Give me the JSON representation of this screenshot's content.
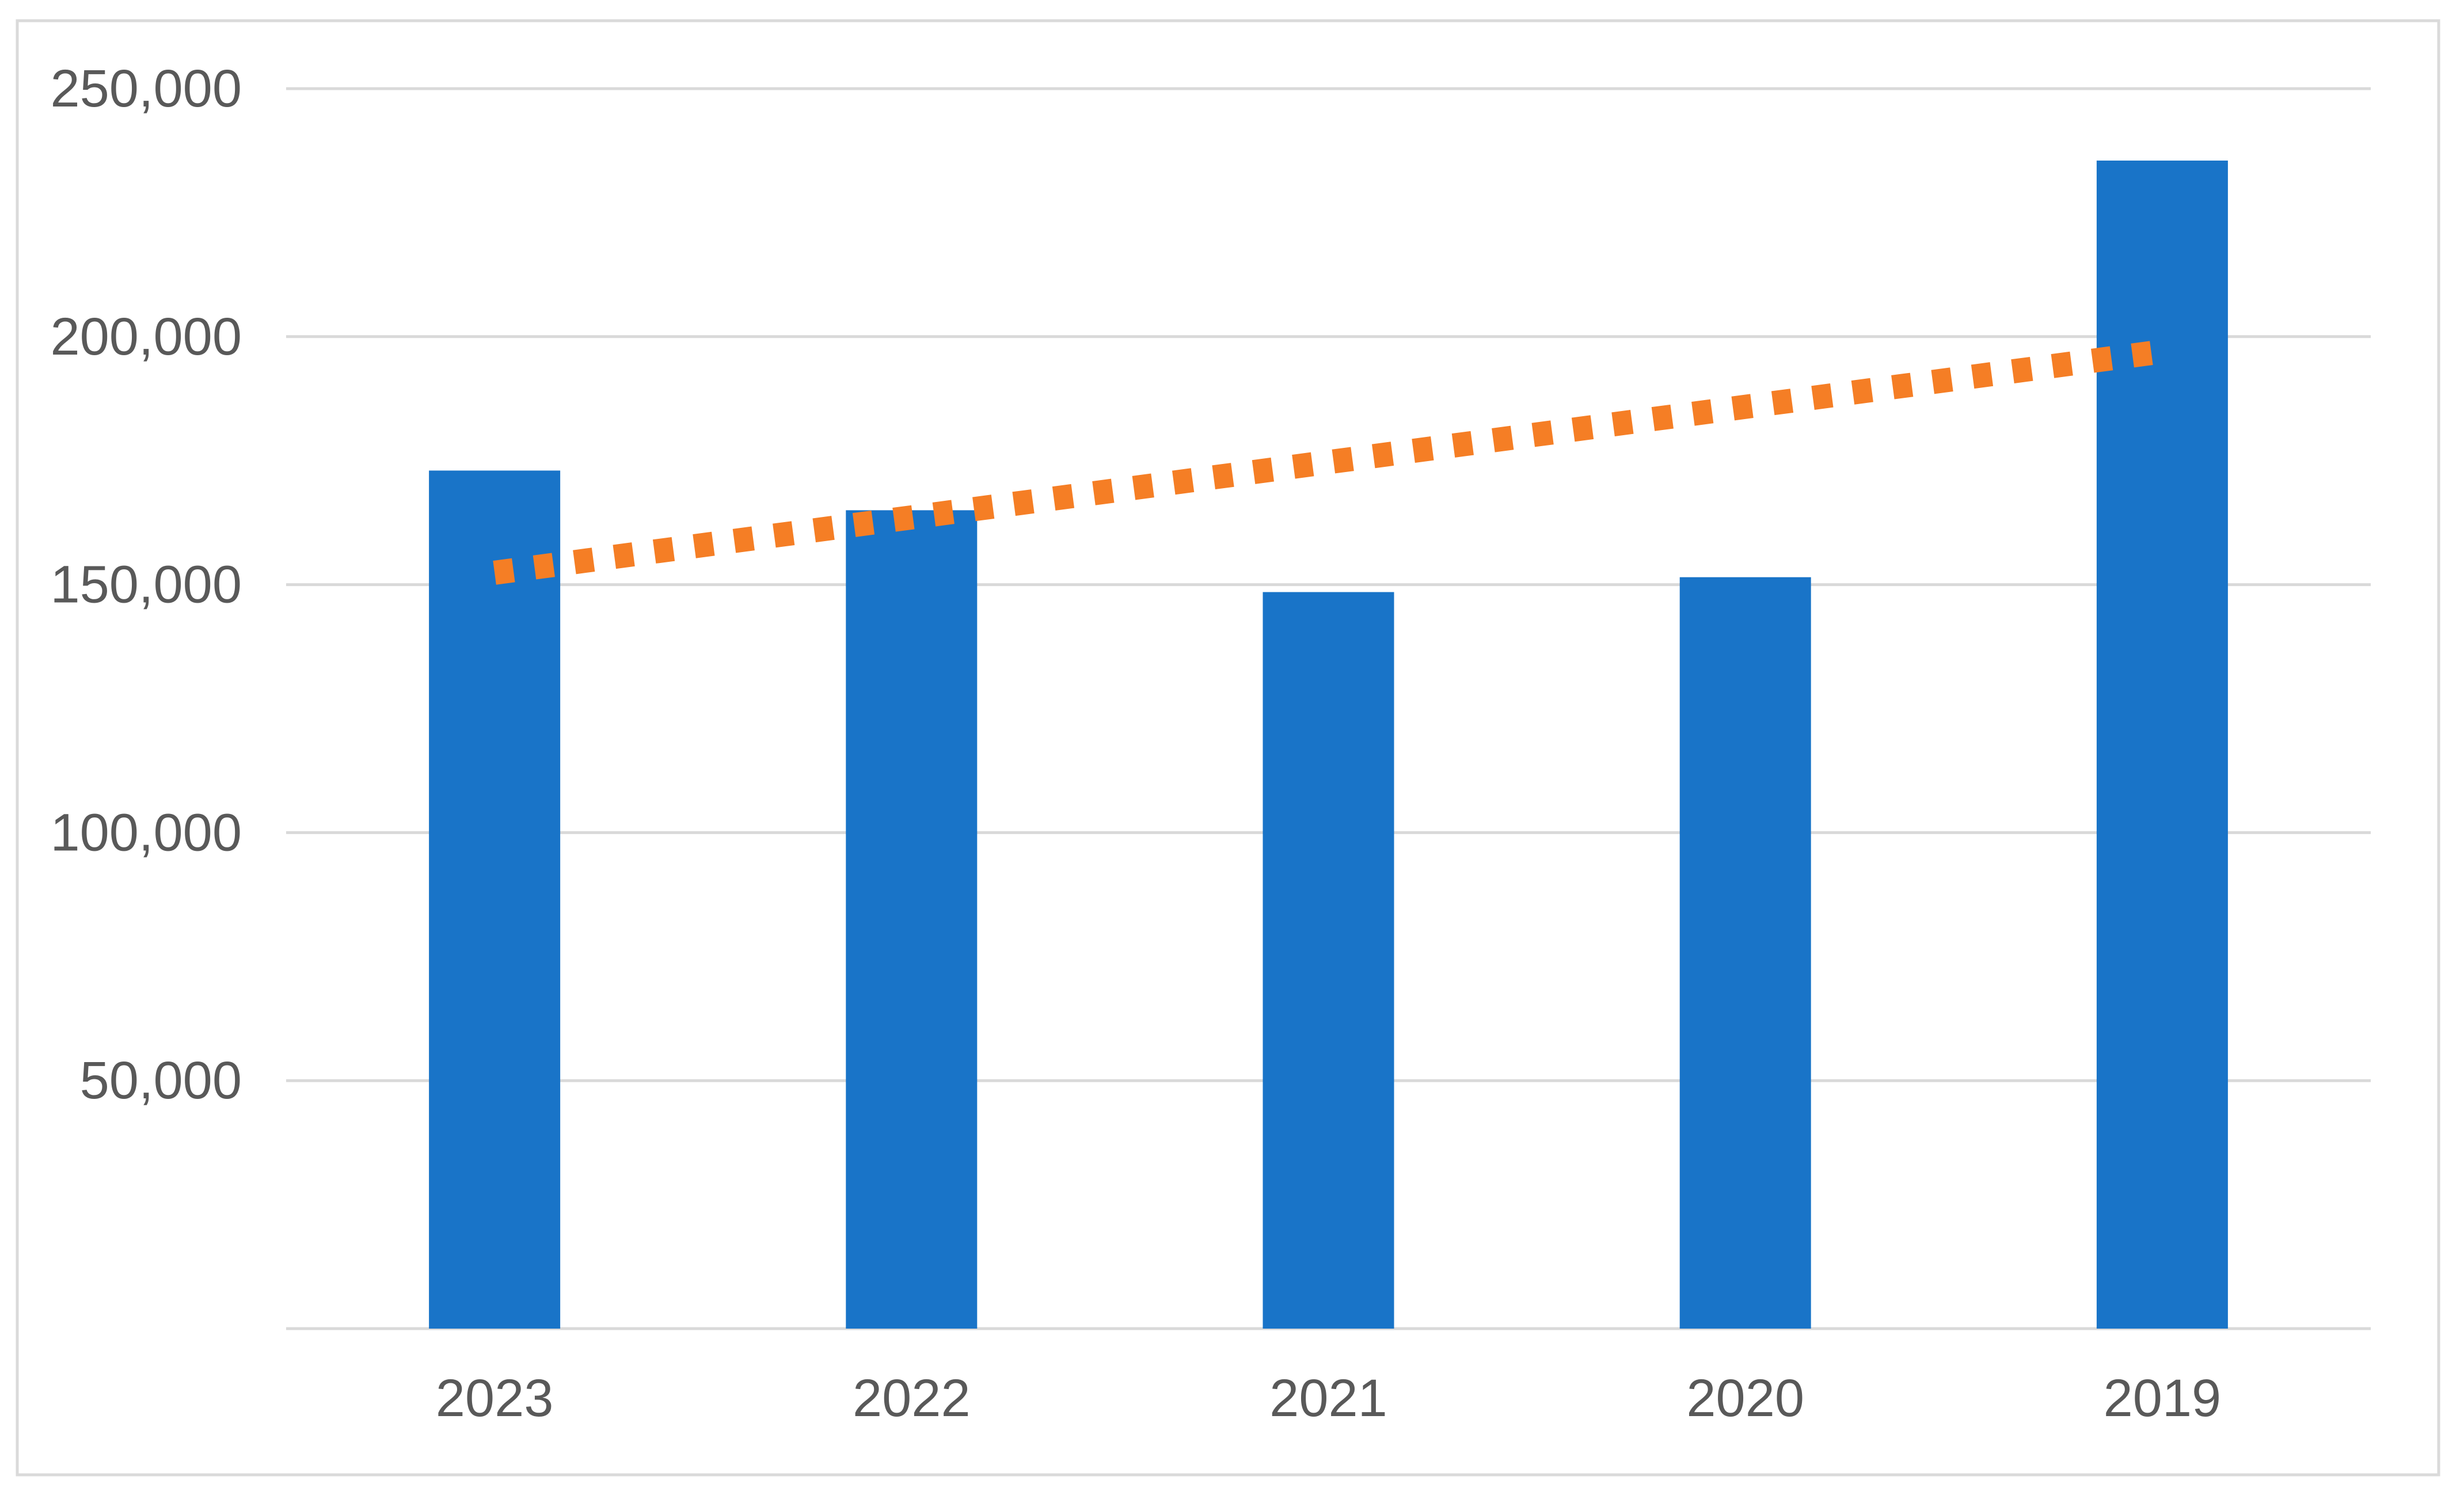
{
  "chart_data": {
    "type": "bar",
    "title": "",
    "categories": [
      "2023",
      "2022",
      "2021",
      "2020",
      "2019"
    ],
    "values": [
      173000,
      165000,
      148500,
      151500,
      235500
    ],
    "bar_color": "#1974C8",
    "trendline": {
      "type": "linear",
      "style": "dashed",
      "color": "#F57E25",
      "start_value": 152400,
      "end_value": 197000
    },
    "y_axis": {
      "min": 0,
      "max": 250000,
      "tick_step": 50000,
      "ticks": [
        {
          "value": 50000,
          "label": "50,000"
        },
        {
          "value": 100000,
          "label": "100,000"
        },
        {
          "value": 150000,
          "label": "150,000"
        },
        {
          "value": 200000,
          "label": "200,000"
        },
        {
          "value": 250000,
          "label": "250,000"
        }
      ],
      "gridlines": true,
      "zero_label_shown": false
    },
    "x_axis": {
      "tick_labels": [
        "2023",
        "2022",
        "2021",
        "2020",
        "2019"
      ]
    },
    "legend": {
      "visible": false
    },
    "styles": {
      "grid_color": "#D9D9D9",
      "axis_line_color": "#D9D9D9",
      "border_color": "#DADADA",
      "text_color": "#595959",
      "background": "#FFFFFF"
    }
  }
}
